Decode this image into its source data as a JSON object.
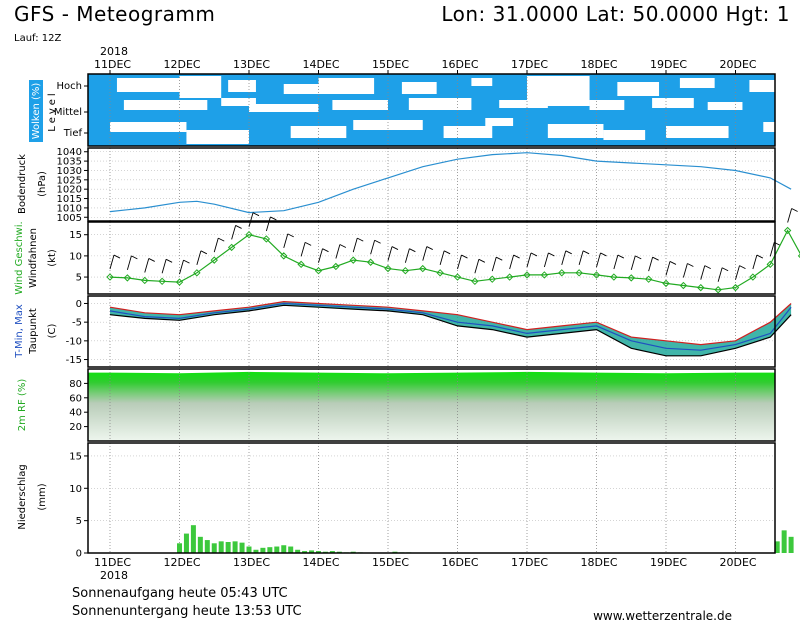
{
  "header": {
    "title": "GFS - Meteogramm",
    "coordinates": "Lon: 31.0000  Lat: 50.0000  Hgt: 1",
    "run": "Lauf: 12Z"
  },
  "colors": {
    "cloud_blue": "#1ea0e8",
    "pressure_line": "#2a8fd0",
    "wind_green": "#22aa22",
    "dewpoint_black": "#000000",
    "tmin_blue": "#2050c0",
    "tmax_red": "#d02020",
    "temp_band": "#1fa89a",
    "rh_green": "#18d818",
    "precip_green": "#3cc83c"
  },
  "footer": {
    "sunrise": "Sonnenaufgang heute 05:43 UTC",
    "sunset": "Sonnenuntergang heute 13:53 UTC",
    "credit": "www.wetterzentrale.de"
  },
  "chart_data": {
    "type": "line",
    "year_label": "2018",
    "x_ticks": [
      "11DEC",
      "12DEC",
      "13DEC",
      "14DEC",
      "15DEC",
      "16DEC",
      "17DEC",
      "18DEC",
      "19DEC",
      "20DEC"
    ],
    "panels": [
      {
        "id": "clouds",
        "ylabel_main": "Wolken (%)",
        "ylabel_sub": "Level",
        "level_labels": [
          "Hoch",
          "Mittel",
          "Tief"
        ],
        "type": "heatmap",
        "note": "cloud cover by level (Hoch, Mittel, Tief)"
      },
      {
        "id": "pressure",
        "ylabel_main": "Bodendruck",
        "ylabel_sub": "(hPa)",
        "type": "line",
        "yticks": [
          1005,
          1010,
          1015,
          1020,
          1025,
          1030,
          1035,
          1040
        ],
        "ylim": [
          1003,
          1042
        ],
        "x": [
          0,
          0.5,
          1,
          1.25,
          1.5,
          2,
          2.5,
          3,
          3.5,
          4,
          4.5,
          5,
          5.5,
          6,
          6.5,
          7,
          7.5,
          8,
          8.5,
          9,
          9.5,
          9.8
        ],
        "values": [
          1008,
          1010,
          1013,
          1013.5,
          1012,
          1007.5,
          1008.5,
          1013,
          1020,
          1026,
          1032,
          1036,
          1038.5,
          1039.5,
          1038,
          1035,
          1034,
          1033,
          1032,
          1030,
          1026,
          1020
        ]
      },
      {
        "id": "wind",
        "ylabel_main": "Wind Geschwi.",
        "ylabel_sub": "Windfahnen",
        "ylabel_unit": "(kt)",
        "type": "line",
        "yticks": [
          5,
          10,
          15
        ],
        "ylim": [
          1,
          18
        ],
        "series": [
          {
            "name": "Wind Geschwi.",
            "x": [
              0,
              0.25,
              0.5,
              0.75,
              1,
              1.25,
              1.5,
              1.75,
              2,
              2.25,
              2.5,
              2.75,
              3,
              3.25,
              3.5,
              3.75,
              4,
              4.25,
              4.5,
              4.75,
              5,
              5.25,
              5.5,
              5.75,
              6,
              6.25,
              6.5,
              6.75,
              7,
              7.25,
              7.5,
              7.75,
              8,
              8.25,
              8.5,
              8.75,
              9,
              9.25,
              9.5,
              9.75,
              9.95
            ],
            "values": [
              5,
              4.8,
              4.2,
              4.0,
              3.8,
              6,
              9,
              12,
              15,
              14,
              10,
              8,
              6.5,
              7.5,
              9,
              8.5,
              7,
              6.5,
              7,
              6,
              5,
              4,
              4.5,
              5,
              5.5,
              5.5,
              6,
              6,
              5.5,
              5,
              4.8,
              4.5,
              3.5,
              3,
              2.5,
              2,
              2.5,
              5,
              8,
              16,
              10
            ]
          }
        ]
      },
      {
        "id": "temperature",
        "ylabel_main": "T-Min, Max",
        "ylabel_sub": "Taupunkt",
        "ylabel_unit": "(C)",
        "type": "area",
        "yticks": [
          0,
          -5,
          -10,
          -15
        ],
        "ylim": [
          -17,
          2
        ],
        "x": [
          0,
          0.5,
          1,
          1.5,
          2,
          2.5,
          3,
          3.5,
          4,
          4.5,
          5,
          5.5,
          6,
          6.5,
          7,
          7.5,
          8,
          8.5,
          9,
          9.5,
          9.8
        ],
        "series": [
          {
            "name": "T-Max",
            "values": [
              -1,
              -2.5,
              -3,
              -2,
              -1,
              0.5,
              0,
              -0.5,
              -1,
              -2,
              -3,
              -5,
              -7,
              -6,
              -5,
              -9,
              -10,
              -11,
              -10,
              -5,
              0
            ]
          },
          {
            "name": "T-Min",
            "values": [
              -2,
              -3.5,
              -4,
              -2.5,
              -1.5,
              0,
              -0.5,
              -1,
              -1.5,
              -2.5,
              -5,
              -6,
              -8,
              -7,
              -6,
              -10,
              -12,
              -12.5,
              -11,
              -8,
              -1
            ]
          },
          {
            "name": "Taupunkt",
            "values": [
              -3,
              -4,
              -4.5,
              -3,
              -2,
              -0.5,
              -1,
              -1.5,
              -2,
              -3,
              -6,
              -7,
              -9,
              -8,
              -7,
              -12,
              -14,
              -14,
              -12,
              -9,
              -3
            ]
          }
        ]
      },
      {
        "id": "humidity",
        "ylabel_main": "2m RF (%)",
        "type": "area",
        "yticks": [
          20,
          40,
          60,
          80
        ],
        "ylim": [
          0,
          100
        ],
        "x": [
          0,
          1,
          2,
          3,
          4,
          5,
          6,
          7,
          8,
          9,
          9.8
        ],
        "values": [
          95,
          94,
          96,
          95,
          94,
          95,
          96,
          95,
          94,
          95,
          95
        ]
      },
      {
        "id": "precipitation",
        "ylabel_main": "Niederschlag",
        "ylabel_sub": "(mm)",
        "type": "bar",
        "yticks": [
          0,
          5,
          10,
          15
        ],
        "ylim": [
          0,
          17
        ],
        "x": [
          1.0,
          1.1,
          1.2,
          1.3,
          1.4,
          1.5,
          1.6,
          1.7,
          1.8,
          1.9,
          2.0,
          2.1,
          2.2,
          2.3,
          2.4,
          2.5,
          2.6,
          2.7,
          2.8,
          2.9,
          3.0,
          3.1,
          3.2,
          3.3,
          3.4,
          3.5,
          3.6,
          4.1,
          4.2,
          4.3,
          9.6,
          9.7,
          9.8
        ],
        "values": [
          1.5,
          3,
          4.3,
          2.5,
          2,
          1.5,
          1.8,
          1.7,
          1.8,
          1.6,
          1.0,
          0.5,
          0.8,
          0.9,
          1.0,
          1.2,
          1.0,
          0.5,
          0.3,
          0.4,
          0.3,
          0.2,
          0.3,
          0.2,
          0.1,
          0.2,
          0.1,
          0.2,
          0.1,
          0.1,
          1.8,
          3.5,
          2.5
        ]
      }
    ]
  }
}
